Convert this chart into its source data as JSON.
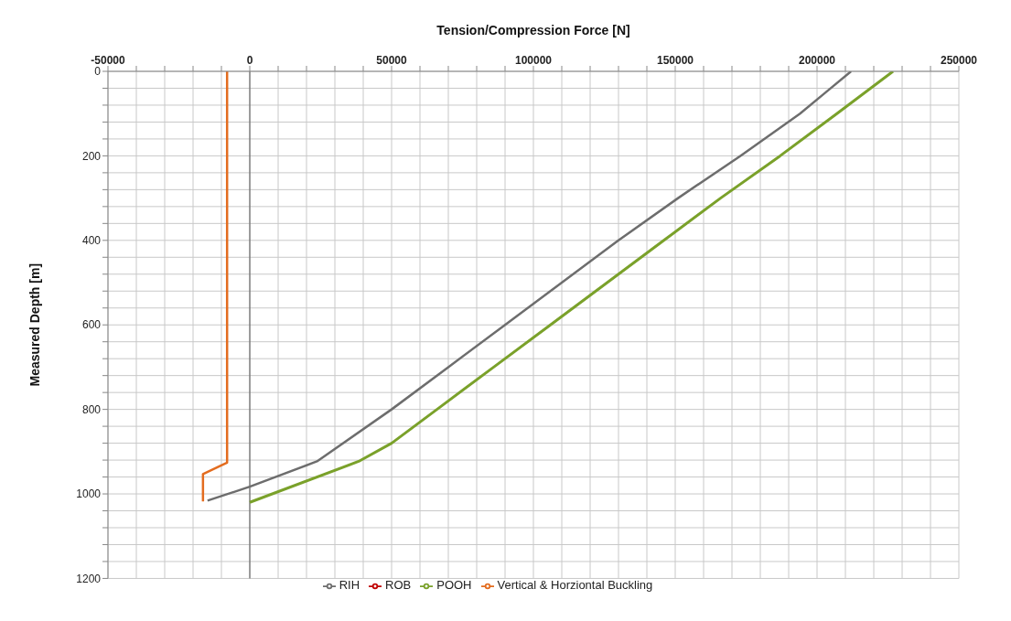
{
  "chart_data": {
    "type": "line",
    "xlabel": "Tension/Compression Force [N]",
    "ylabel": "Measured Depth [m]",
    "xlim": [
      -50000,
      250000
    ],
    "ylim": [
      1200,
      0
    ],
    "xticks": [
      -50000,
      {
        "value": -40000,
        "label": null
      },
      {
        "value": -30000,
        "label": null
      },
      {
        "value": -20000,
        "label": null
      },
      {
        "value": -10000,
        "label": null
      },
      0,
      {
        "value": 10000,
        "label": null
      },
      {
        "value": 20000,
        "label": null
      },
      {
        "value": 30000,
        "label": null
      },
      {
        "value": 40000,
        "label": null
      },
      50000,
      {
        "value": 60000,
        "label": null
      },
      {
        "value": 70000,
        "label": null
      },
      {
        "value": 80000,
        "label": null
      },
      {
        "value": 90000,
        "label": null
      },
      100000,
      {
        "value": 110000,
        "label": null
      },
      {
        "value": 120000,
        "label": null
      },
      {
        "value": 130000,
        "label": null
      },
      {
        "value": 140000,
        "label": null
      },
      150000,
      {
        "value": 160000,
        "label": null
      },
      {
        "value": 170000,
        "label": null
      },
      {
        "value": 180000,
        "label": null
      },
      {
        "value": 190000,
        "label": null
      },
      200000,
      {
        "value": 210000,
        "label": null
      },
      {
        "value": 220000,
        "label": null
      },
      {
        "value": 230000,
        "label": null
      },
      {
        "value": 240000,
        "label": null
      },
      250000
    ],
    "yticks": [
      0,
      {
        "value": 40,
        "label": null
      },
      {
        "value": 80,
        "label": null
      },
      {
        "value": 120,
        "label": null
      },
      {
        "value": 160,
        "label": null
      },
      200,
      {
        "value": 240,
        "label": null
      },
      {
        "value": 280,
        "label": null
      },
      {
        "value": 320,
        "label": null
      },
      {
        "value": 360,
        "label": null
      },
      400,
      {
        "value": 440,
        "label": null
      },
      {
        "value": 480,
        "label": null
      },
      {
        "value": 520,
        "label": null
      },
      {
        "value": 560,
        "label": null
      },
      600,
      {
        "value": 640,
        "label": null
      },
      {
        "value": 680,
        "label": null
      },
      {
        "value": 720,
        "label": null
      },
      {
        "value": 760,
        "label": null
      },
      800,
      {
        "value": 840,
        "label": null
      },
      {
        "value": 880,
        "label": null
      },
      {
        "value": 920,
        "label": null
      },
      {
        "value": 960,
        "label": null
      },
      1000,
      {
        "value": 1040,
        "label": null
      },
      {
        "value": 1080,
        "label": null
      },
      {
        "value": 1120,
        "label": null
      },
      {
        "value": 1160,
        "label": null
      },
      1200
    ],
    "grid": true,
    "legend": "bottom",
    "marker": "none",
    "line_style": "solid",
    "series": [
      {
        "name": "RIH",
        "color": "#6d6d6d",
        "x": [
          212000,
          203000,
          194000,
          173000,
          151000,
          130000,
          110000,
          90000,
          70000,
          50000,
          23700,
          0,
          -14900
        ],
        "values": [
          0,
          50,
          100,
          200,
          300,
          400,
          500,
          600,
          700,
          800,
          923,
          983,
          1016
        ]
      },
      {
        "name": "ROB",
        "color": "#c00000"
      },
      {
        "name": "POOH",
        "color": "#7aa12a",
        "x": [
          226800,
          207000,
          187000,
          166000,
          146000,
          126000,
          106000,
          86000,
          66000,
          50000,
          38400,
          0
        ],
        "values": [
          0,
          100,
          200,
          300,
          400,
          500,
          600,
          700,
          800,
          880,
          923,
          1020
        ]
      },
      {
        "name": "Vertical & Horziontal Buckling",
        "color": "#e36c1f",
        "x": [
          -8000,
          -8000,
          -16500,
          -16500
        ],
        "values": [
          0,
          926,
          953,
          1018
        ]
      }
    ]
  }
}
